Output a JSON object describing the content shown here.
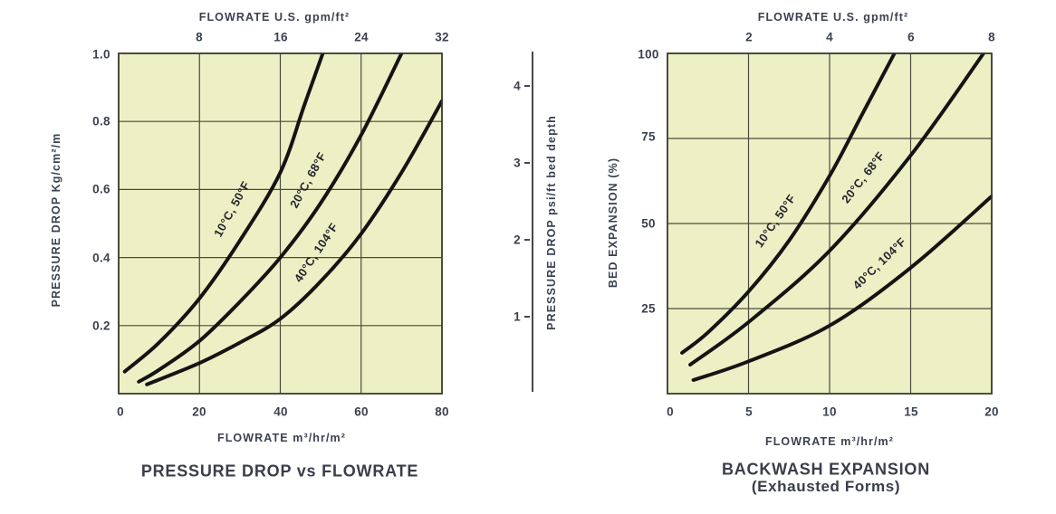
{
  "style": {
    "plot_bg": "#edf0c4",
    "grid_color": "#4a4c3d",
    "border_color": "#3b3d31",
    "curve_color": "#141414",
    "text_color": "#3b4150"
  },
  "left_chart": {
    "title": "PRESSURE DROP vs FLOWRATE",
    "top_axis_title": "FLOWRATE U.S. gpm/ft²",
    "top_ticks": [
      "8",
      "16",
      "24",
      "32"
    ],
    "bottom_axis_title": "FLOWRATE m³/hr/m²",
    "bottom_ticks": [
      "0",
      "20",
      "40",
      "60",
      "80"
    ],
    "left_axis_title": "PRESSURE DROP Kg/cm²/m",
    "left_ticks": [
      "1.0",
      "0.8",
      "0.6",
      "0.4",
      "0.2"
    ],
    "curve_labels": [
      "10°C, 50°F",
      "20°C, 68°F",
      "40°C, 104°F"
    ]
  },
  "psi_axis": {
    "title": "PRESSURE DROP psi/ft bed depth",
    "ticks": [
      "4",
      "3",
      "2",
      "1"
    ]
  },
  "right_chart": {
    "title_line1": "BACKWASH EXPANSION",
    "title_line2": "(Exhausted Forms)",
    "top_axis_title": "FLOWRATE U.S. gpm/ft²",
    "top_ticks": [
      "2",
      "4",
      "6",
      "8"
    ],
    "bottom_axis_title": "FLOWRATE m³/hr/m²",
    "bottom_ticks": [
      "0",
      "5",
      "10",
      "15",
      "20"
    ],
    "left_axis_title": "BED EXPANSION (%)",
    "left_ticks": [
      "100",
      "75",
      "50",
      "25"
    ],
    "curve_labels": [
      "10°C, 50°F",
      "20°C, 68°F",
      "40°C, 104°F"
    ]
  },
  "chart_data": [
    {
      "type": "line",
      "title": "PRESSURE DROP vs FLOWRATE",
      "xlabel": "FLOWRATE m³/hr/m²",
      "xlabel_top": "FLOWRATE U.S. gpm/ft²",
      "ylabel": "PRESSURE DROP Kg/cm²/m",
      "ylabel_secondary": "PRESSURE DROP psi/ft bed depth",
      "xlim": [
        0,
        80
      ],
      "ylim": [
        0,
        1.0
      ],
      "x_ticks_bottom": [
        0,
        20,
        40,
        60,
        80
      ],
      "x_ticks_top_gpm_ft2": [
        8,
        16,
        24,
        32
      ],
      "y_ticks_kg_cm2_m": [
        0.2,
        0.4,
        0.6,
        0.8,
        1.0
      ],
      "y_ticks_secondary_psi_ft": [
        1,
        2,
        3,
        4
      ],
      "grid": true,
      "legend_position": "labels-on-curves",
      "series": [
        {
          "name": "10°C, 50°F",
          "points": [
            [
              1.5,
              0.065
            ],
            [
              10,
              0.15
            ],
            [
              20,
              0.28
            ],
            [
              30,
              0.45
            ],
            [
              40,
              0.65
            ],
            [
              46,
              0.85
            ],
            [
              50.5,
              1.0
            ]
          ]
        },
        {
          "name": "20°C, 68°F",
          "points": [
            [
              5,
              0.035
            ],
            [
              10,
              0.07
            ],
            [
              20,
              0.155
            ],
            [
              30,
              0.27
            ],
            [
              40,
              0.4
            ],
            [
              50,
              0.56
            ],
            [
              60,
              0.76
            ],
            [
              70,
              1.0
            ]
          ]
        },
        {
          "name": "40°C, 104°F",
          "points": [
            [
              7,
              0.027
            ],
            [
              20,
              0.09
            ],
            [
              30,
              0.15
            ],
            [
              40,
              0.22
            ],
            [
              50,
              0.33
            ],
            [
              60,
              0.47
            ],
            [
              70,
              0.65
            ],
            [
              80,
              0.86
            ]
          ]
        }
      ]
    },
    {
      "type": "line",
      "title": "BACKWASH EXPANSION (Exhausted Forms)",
      "xlabel": "FLOWRATE m³/hr/m²",
      "xlabel_top": "FLOWRATE U.S. gpm/ft²",
      "ylabel": "BED EXPANSION (%)",
      "xlim": [
        0,
        20
      ],
      "ylim": [
        0,
        100
      ],
      "x_ticks_bottom": [
        0,
        5,
        10,
        15,
        20
      ],
      "x_ticks_top_gpm_ft2": [
        2,
        4,
        6,
        8
      ],
      "y_ticks_percent": [
        25,
        50,
        75,
        100
      ],
      "grid": true,
      "legend_position": "labels-on-curves",
      "series": [
        {
          "name": "10°C, 50°F",
          "points": [
            [
              0.9,
              12
            ],
            [
              2.5,
              18
            ],
            [
              5,
              30
            ],
            [
              7.5,
              45
            ],
            [
              10,
              64
            ],
            [
              12,
              82
            ],
            [
              14,
              100
            ]
          ]
        },
        {
          "name": "20°C, 68°F",
          "points": [
            [
              1.4,
              8.5
            ],
            [
              5,
              21
            ],
            [
              10,
              42
            ],
            [
              15,
              70
            ],
            [
              19.5,
              100
            ]
          ]
        },
        {
          "name": "40°C, 104°F",
          "points": [
            [
              1.6,
              4
            ],
            [
              5,
              9.5
            ],
            [
              10,
              20
            ],
            [
              15,
              37
            ],
            [
              20,
              58
            ]
          ]
        }
      ]
    }
  ]
}
